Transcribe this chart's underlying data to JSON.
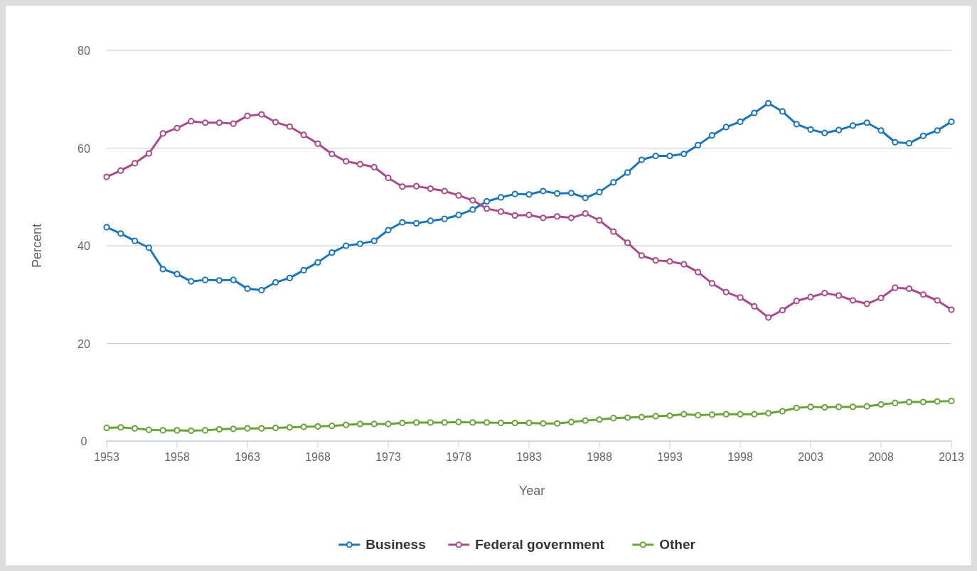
{
  "chart_data": {
    "type": "line",
    "xlabel": "Year",
    "ylabel": "Percent",
    "x": [
      1953,
      1954,
      1955,
      1956,
      1957,
      1958,
      1959,
      1960,
      1961,
      1962,
      1963,
      1964,
      1965,
      1966,
      1967,
      1968,
      1969,
      1970,
      1971,
      1972,
      1973,
      1974,
      1975,
      1976,
      1977,
      1978,
      1979,
      1980,
      1981,
      1982,
      1983,
      1984,
      1985,
      1986,
      1987,
      1988,
      1989,
      1990,
      1991,
      1992,
      1993,
      1994,
      1995,
      1996,
      1997,
      1998,
      1999,
      2000,
      2001,
      2002,
      2003,
      2004,
      2005,
      2006,
      2007,
      2008,
      2009,
      2010,
      2011,
      2012,
      2013
    ],
    "xlim": [
      1953,
      2013
    ],
    "xticks": [
      1953,
      1958,
      1963,
      1968,
      1973,
      1978,
      1983,
      1988,
      1993,
      1998,
      2003,
      2008,
      2013
    ],
    "ylim": [
      0,
      80
    ],
    "yticks": [
      0,
      20,
      40,
      60,
      80
    ],
    "grid": "y",
    "legend": "bottom",
    "marker": "circle",
    "line_style": "solid",
    "series": [
      {
        "name": "Business",
        "color": "#1a75bc",
        "values": [
          43.8,
          42.5,
          41,
          39.6,
          35.2,
          34.2,
          32.7,
          33,
          32.9,
          33,
          31.2,
          30.9,
          32.5,
          33.4,
          35,
          36.6,
          38.6,
          40,
          40.4,
          41,
          43.2,
          44.8,
          44.6,
          45.1,
          45.5,
          46.3,
          47.4,
          49.1,
          49.9,
          50.6,
          50.5,
          51.2,
          50.7,
          50.8,
          49.8,
          51,
          53,
          55,
          57.6,
          58.4,
          58.4,
          58.8,
          60.6,
          62.6,
          64.3,
          65.4,
          67.2,
          69.2,
          67.5,
          64.9,
          63.8,
          63.1,
          63.7,
          64.6,
          65.2,
          63.6,
          61.2,
          61,
          62.5,
          63.6,
          65.4
        ]
      },
      {
        "name": "Federal government",
        "color": "#a94a8a",
        "values": [
          54.1,
          55.4,
          56.9,
          58.9,
          63,
          64.1,
          65.5,
          65.2,
          65.2,
          65,
          66.6,
          66.9,
          65.3,
          64.4,
          62.7,
          60.9,
          58.8,
          57.3,
          56.7,
          56.1,
          53.9,
          52.1,
          52.2,
          51.7,
          51.2,
          50.3,
          49.3,
          47.6,
          47,
          46.2,
          46.3,
          45.7,
          46,
          45.7,
          46.6,
          45.2,
          42.9,
          40.6,
          38,
          37,
          36.8,
          36.2,
          34.6,
          32.3,
          30.5,
          29.4,
          27.6,
          25.3,
          26.8,
          28.7,
          29.5,
          30.3,
          29.8,
          28.8,
          28.1,
          29.3,
          31.4,
          31.2,
          30,
          28.8,
          26.9
        ]
      },
      {
        "name": "Other",
        "color": "#6aa23a",
        "values": [
          2.7,
          2.8,
          2.6,
          2.3,
          2.2,
          2.2,
          2.1,
          2.2,
          2.4,
          2.5,
          2.6,
          2.6,
          2.7,
          2.8,
          2.9,
          3,
          3.1,
          3.3,
          3.5,
          3.5,
          3.5,
          3.7,
          3.8,
          3.8,
          3.8,
          3.9,
          3.8,
          3.8,
          3.7,
          3.7,
          3.7,
          3.6,
          3.6,
          3.9,
          4.2,
          4.4,
          4.7,
          4.8,
          4.9,
          5.1,
          5.2,
          5.5,
          5.3,
          5.4,
          5.5,
          5.5,
          5.5,
          5.7,
          6.1,
          6.8,
          7,
          6.9,
          7,
          7,
          7.1,
          7.5,
          7.8,
          8,
          8,
          8.1,
          8.2
        ]
      }
    ]
  }
}
